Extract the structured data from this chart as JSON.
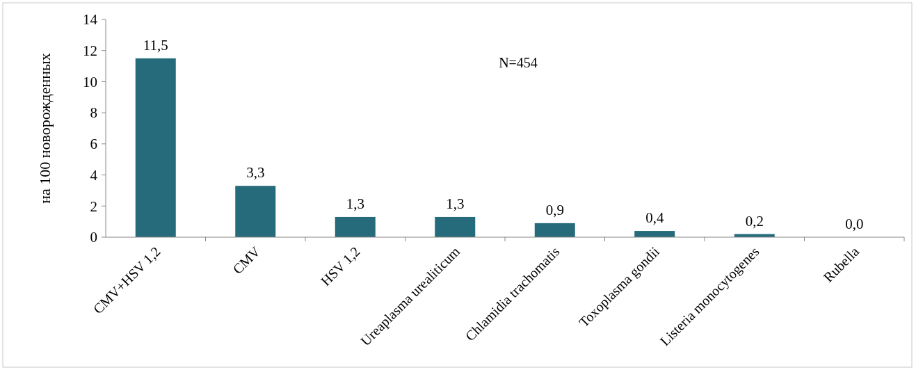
{
  "chart_data": {
    "type": "bar",
    "ylabel": "на 100 новорожденных",
    "categories": [
      "CMV+HSV 1,2",
      "CMV",
      "HSV 1,2",
      "Ureaplasma urealiticum",
      "Chlamidia trachomatis",
      "Toxoplasma gondii",
      "Listeria monocytogenes",
      "Rubella"
    ],
    "values": [
      11.5,
      3.3,
      1.3,
      1.3,
      0.9,
      0.4,
      0.2,
      0.0
    ],
    "value_labels": [
      "11,5",
      "3,3",
      "1,3",
      "1,3",
      "0,9",
      "0,4",
      "0,2",
      "0,0"
    ],
    "color": "#266b7b",
    "ylim": [
      0,
      14
    ],
    "yticks": [
      0,
      2,
      4,
      6,
      8,
      10,
      12,
      14
    ],
    "annotations": [
      "N=454"
    ]
  }
}
